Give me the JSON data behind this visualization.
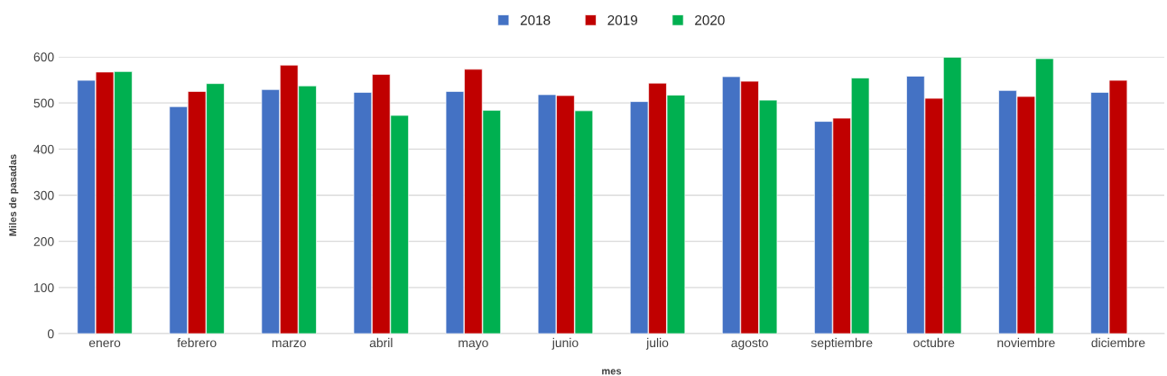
{
  "chart_data": {
    "type": "bar",
    "xlabel": "mes",
    "ylabel": "Miles de pasadas",
    "categories": [
      "enero",
      "febrero",
      "marzo",
      "abril",
      "mayo",
      "junio",
      "julio",
      "agosto",
      "septiembre",
      "octubre",
      "noviembre",
      "diciembre"
    ],
    "series": [
      {
        "name": "2018",
        "color": "#4472c4",
        "values": [
          549,
          492,
          529,
          523,
          525,
          518,
          503,
          557,
          460,
          558,
          527,
          523
        ]
      },
      {
        "name": "2019",
        "color": "#c00000",
        "values": [
          567,
          525,
          582,
          562,
          573,
          516,
          543,
          547,
          467,
          510,
          514,
          549
        ]
      },
      {
        "name": "2020",
        "color": "#00b050",
        "values": [
          568,
          542,
          537,
          473,
          484,
          483,
          517,
          506,
          554,
          599,
          596,
          null
        ]
      }
    ],
    "ylim": [
      0,
      600
    ],
    "yticks": [
      0,
      100,
      200,
      300,
      400,
      500,
      600
    ],
    "grid": "y",
    "legend": "top"
  }
}
